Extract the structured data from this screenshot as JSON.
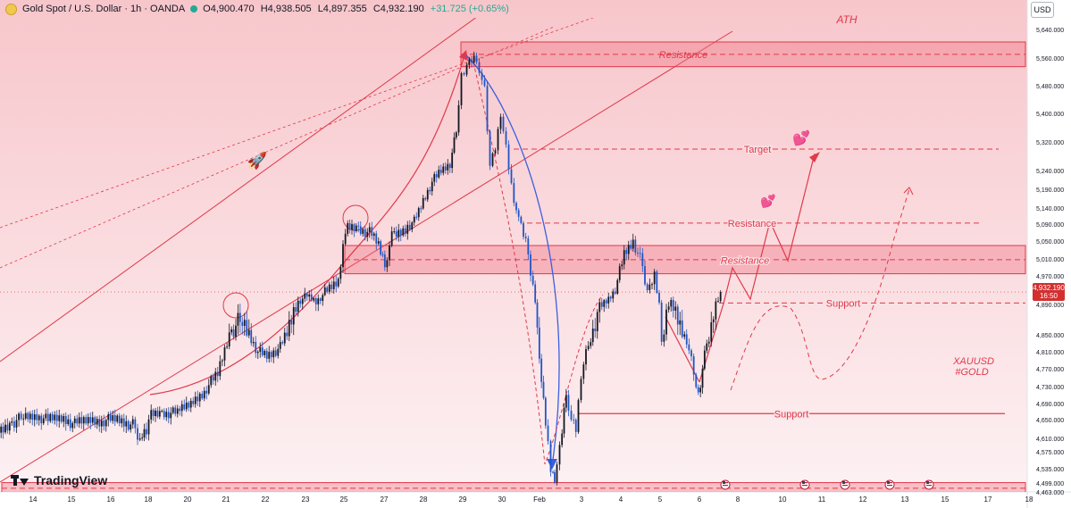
{
  "header": {
    "symbol": "Gold Spot / U.S. Dollar · 1h · OANDA",
    "open": "O4,900.470",
    "high": "H4,938.505",
    "low": "L4,897.355",
    "close": "C4,932.190",
    "change": "+31.725 (+0.65%)",
    "currency": "USD"
  },
  "colors": {
    "bg_top": "#f7c9cd",
    "bg_bottom": "#fdeff1",
    "accent": "#e0394a",
    "bull": "#131722",
    "bear": "#1f55c8",
    "curve": "#3b5fe0"
  },
  "brand": "TradingView",
  "last_price": {
    "value": "4,932.190",
    "countdown": "16:50"
  },
  "chart_data": {
    "type": "candlestick",
    "symbol": "XAUUSD",
    "interval": "1h",
    "ylim": [
      4440,
      5660
    ],
    "price_ticks": [
      5640,
      5560,
      5480,
      5400,
      5320,
      5240,
      5190,
      5140,
      5090,
      5050,
      5010,
      4970,
      4930,
      4890,
      4850,
      4810,
      4770,
      4730,
      4690,
      4650,
      4610,
      4575,
      4535,
      4499,
      4463
    ],
    "price_tick_labels": [
      "5,640.000",
      "5,560.000",
      "5,480.000",
      "5,400.000",
      "5,320.000",
      "5,240.000",
      "5,190.000",
      "5,140.000",
      "5,090.000",
      "5,050.000",
      "5,010.000",
      "4,970.000",
      "4,930.000",
      "4,890.000",
      "4,850.000",
      "4,810.000",
      "4,770.000",
      "4,730.000",
      "4,690.000",
      "4,650.000",
      "4,610.000",
      "4,575.000",
      "4,535.000",
      "4,499.000",
      "4,463.000"
    ],
    "time_labels": [
      "14",
      "15",
      "16",
      "18",
      "20",
      "21",
      "22",
      "23",
      "25",
      "27",
      "28",
      "29",
      "30",
      "Feb",
      "3",
      "4",
      "5",
      "6",
      "8",
      "10",
      "11",
      "12",
      "13",
      "15",
      "17",
      "18"
    ],
    "time_label_x": [
      37,
      80,
      124,
      166,
      210,
      253,
      297,
      342,
      385,
      430,
      474,
      518,
      562,
      604,
      651,
      695,
      739,
      783,
      826,
      876,
      920,
      966,
      1013,
      1058,
      1106,
      1152
    ],
    "price_path": [
      [
        0,
        4622
      ],
      [
        12,
        4640
      ],
      [
        25,
        4655
      ],
      [
        40,
        4660
      ],
      [
        55,
        4650
      ],
      [
        70,
        4655
      ],
      [
        85,
        4640
      ],
      [
        100,
        4650
      ],
      [
        115,
        4648
      ],
      [
        130,
        4652
      ],
      [
        150,
        4638
      ],
      [
        158,
        4610
      ],
      [
        165,
        4625
      ],
      [
        168,
        4660
      ],
      [
        180,
        4665
      ],
      [
        200,
        4668
      ],
      [
        215,
        4690
      ],
      [
        230,
        4720
      ],
      [
        245,
        4760
      ],
      [
        258,
        4850
      ],
      [
        270,
        4870
      ],
      [
        280,
        4850
      ],
      [
        290,
        4810
      ],
      [
        300,
        4800
      ],
      [
        315,
        4820
      ],
      [
        325,
        4860
      ],
      [
        335,
        4900
      ],
      [
        345,
        4920
      ],
      [
        355,
        4900
      ],
      [
        365,
        4930
      ],
      [
        380,
        4960
      ],
      [
        388,
        5080
      ],
      [
        400,
        5080
      ],
      [
        415,
        5070
      ],
      [
        425,
        5040
      ],
      [
        432,
        5000
      ],
      [
        440,
        5060
      ],
      [
        455,
        5080
      ],
      [
        465,
        5100
      ],
      [
        475,
        5160
      ],
      [
        485,
        5210
      ],
      [
        495,
        5240
      ],
      [
        505,
        5260
      ],
      [
        512,
        5350
      ],
      [
        518,
        5510
      ],
      [
        524,
        5540
      ],
      [
        532,
        5560
      ],
      [
        538,
        5530
      ],
      [
        544,
        5470
      ],
      [
        550,
        5250
      ],
      [
        556,
        5300
      ],
      [
        562,
        5400
      ],
      [
        568,
        5300
      ],
      [
        574,
        5200
      ],
      [
        582,
        5100
      ],
      [
        590,
        5050
      ],
      [
        598,
        4950
      ],
      [
        605,
        4800
      ],
      [
        612,
        4650
      ],
      [
        618,
        4530
      ],
      [
        622,
        4510
      ],
      [
        628,
        4580
      ],
      [
        635,
        4720
      ],
      [
        641,
        4650
      ],
      [
        646,
        4630
      ],
      [
        652,
        4760
      ],
      [
        660,
        4830
      ],
      [
        670,
        4880
      ],
      [
        680,
        4900
      ],
      [
        690,
        4940
      ],
      [
        700,
        5020
      ],
      [
        710,
        5050
      ],
      [
        718,
        5010
      ],
      [
        726,
        4930
      ],
      [
        734,
        4980
      ],
      [
        742,
        4840
      ],
      [
        750,
        4900
      ],
      [
        760,
        4870
      ],
      [
        770,
        4840
      ],
      [
        778,
        4760
      ],
      [
        783,
        4710
      ],
      [
        790,
        4800
      ],
      [
        800,
        4880
      ],
      [
        808,
        4932
      ]
    ],
    "annotations": [
      {
        "text": "ATH"
      },
      {
        "text": "Resistance"
      },
      {
        "text": "Target"
      },
      {
        "text": "Resistance"
      },
      {
        "text": "Resistance"
      },
      {
        "text": "Support"
      },
      {
        "text": "Support"
      },
      {
        "text": "XAUUSD"
      },
      {
        "text": "#GOLD"
      }
    ],
    "levels": {
      "resistance_zone_top": [
        5535,
        5605
      ],
      "resistance_zone_mid": [
        4975,
        5040
      ],
      "support_zone_bottom": [
        4455,
        4500
      ],
      "target": 5300,
      "resistance_dashed": 5093,
      "support_dashed": 4895,
      "support_solid": 4665
    }
  }
}
